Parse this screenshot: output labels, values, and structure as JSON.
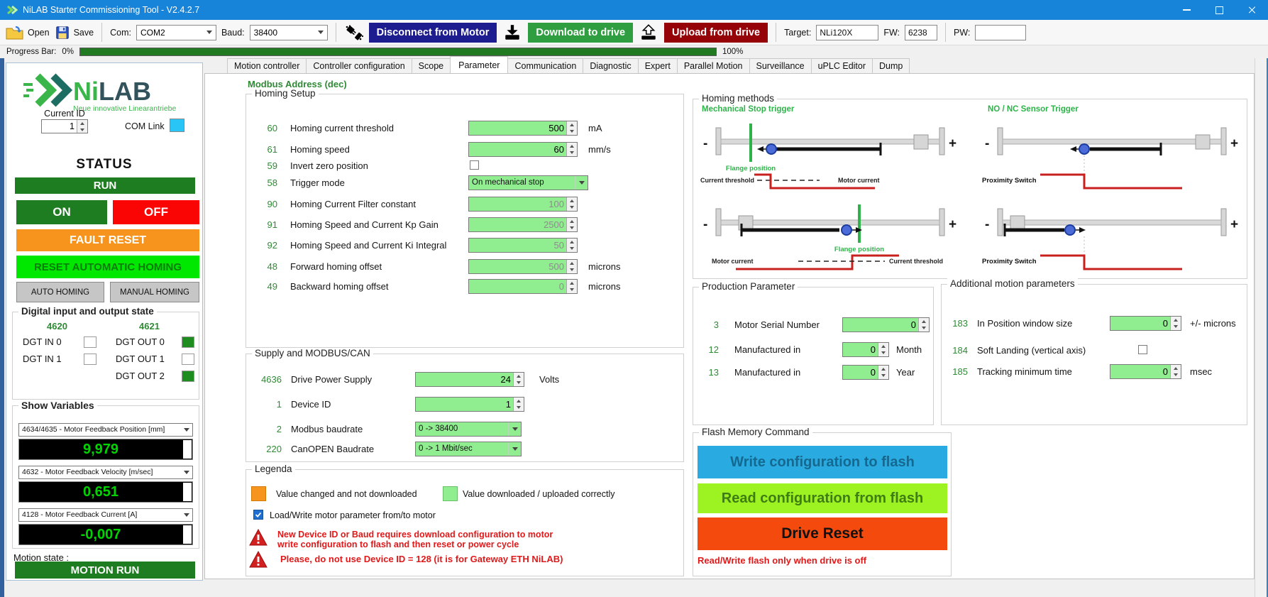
{
  "window": {
    "title": "NiLAB Starter Commissioning Tool - V2.4.2.7"
  },
  "toolbar": {
    "open_label": "Open",
    "save_label": "Save",
    "com_label": "Com:",
    "com_value": "COM2",
    "baud_label": "Baud:",
    "baud_value": "38400",
    "disconnect_label": "Disconnect from Motor",
    "download_label": "Download to drive",
    "upload_label": "Upload from drive",
    "target_label": "Target:",
    "target_value": "NLi120X",
    "fw_label": "FW:",
    "fw_value": "6238",
    "pw_label": "PW:",
    "pw_value": ""
  },
  "progress": {
    "label": "Progress Bar:",
    "start": "0%",
    "end": "100%",
    "fill_percent": 100
  },
  "sidebar": {
    "logo_part1": "Ni",
    "logo_part2": "LAB",
    "logo_tagline": "Neue innovative Linearantriebe",
    "current_id_label": "Current ID",
    "current_id_value": "1",
    "com_link_label": "COM Link",
    "status_title": "STATUS",
    "run_label": "RUN",
    "on_label": "ON",
    "off_label": "OFF",
    "fault_reset_label": "FAULT RESET",
    "reset_automatic_homing_label": "RESET AUTOMATIC HOMING",
    "auto_homing_label": "AUTO HOMING",
    "manual_homing_label": "MANUAL HOMING",
    "dio": {
      "title": "Digital input and output state",
      "col_left": "4620",
      "col_right": "4621",
      "rows": [
        {
          "in_label": "DGT IN 0",
          "in_on": false,
          "out_label": "DGT OUT 0",
          "out_on": true
        },
        {
          "in_label": "DGT IN 1",
          "in_on": false,
          "out_label": "DGT OUT 1",
          "out_on": false
        },
        {
          "in_label": "",
          "in_on": false,
          "out_label": "DGT OUT 2",
          "out_on": true
        }
      ]
    },
    "show_variables": {
      "title": "Show Variables",
      "items": [
        {
          "select_label": "4634/4635 - Motor Feedback Position [mm]",
          "value": "9,979"
        },
        {
          "select_label": "4632 - Motor Feedback Velocity [m/sec]",
          "value": "0,651"
        },
        {
          "select_label": "4128 - Motor Feedback Current [A]",
          "value": "-0,007"
        }
      ]
    },
    "motion_state_label": "Motion state :",
    "motion_state_value": "MOTION RUN"
  },
  "tabs": [
    "Motion controller",
    "Controller configuration",
    "Scope",
    "Parameter",
    "Communication",
    "Diagnostic",
    "Expert",
    "Parallel Motion",
    "Surveillance",
    "uPLC Editor",
    "Dump"
  ],
  "active_tab": "Parameter",
  "parameter_page": {
    "modbus_address_header": "Modbus Address (dec)",
    "homing_setup": {
      "title": "Homing Setup",
      "rows": [
        {
          "addr": "60",
          "label": "Homing current threshold",
          "type": "spin",
          "value": "500",
          "unit": "mA",
          "enabled": true
        },
        {
          "addr": "61",
          "label": "Homing speed",
          "type": "spin",
          "value": "60",
          "unit": "mm/s",
          "enabled": true
        },
        {
          "addr": "59",
          "label": "Invert zero position",
          "type": "checkbox",
          "checked": false
        },
        {
          "addr": "58",
          "label": "Trigger mode",
          "type": "select",
          "value": "On mechanical stop"
        },
        {
          "addr": "90",
          "label": "Homing Current Filter constant",
          "type": "spin",
          "value": "100",
          "enabled": false
        },
        {
          "addr": "91",
          "label": "Homing Speed and Current Kp Gain",
          "type": "spin",
          "value": "2500",
          "enabled": false
        },
        {
          "addr": "92",
          "label": "Homing Speed and Current Ki Integral",
          "type": "spin",
          "value": "50",
          "enabled": false
        },
        {
          "addr": "48",
          "label": "Forward homing offset",
          "type": "spin",
          "value": "500",
          "unit": "microns",
          "enabled": false
        },
        {
          "addr": "49",
          "label": "Backward homing offset",
          "type": "spin",
          "value": "0",
          "unit": "microns",
          "enabled": false
        }
      ]
    },
    "supply": {
      "title": "Supply and MODBUS/CAN",
      "rows": [
        {
          "addr": "4636",
          "label": "Drive Power Supply",
          "type": "spin",
          "value": "24",
          "unit": "Volts",
          "enabled": true
        },
        {
          "addr": "1",
          "label": "Device ID",
          "type": "spin",
          "value": "1",
          "enabled": true
        },
        {
          "addr": "2",
          "label": "Modbus baudrate",
          "type": "select",
          "value": "0 -> 38400"
        },
        {
          "addr": "220",
          "label": "CanOPEN Baudrate",
          "type": "select",
          "value": "0 -> 1 Mbit/sec"
        }
      ]
    },
    "legend": {
      "title": "Legenda",
      "orange_label": "Value changed and not downloaded",
      "green_label": "Value downloaded / uploaded correctly",
      "checkbox_label": "Load/Write motor parameter from/to motor",
      "warning1": "New Device ID or Baud requires download configuration to motor\nwrite configuration to flash and then reset or power cycle",
      "warning2": "Please, do not use Device ID = 128 (it is for Gateway ETH NiLAB)"
    },
    "homing_methods": {
      "title": "Homing methods",
      "left_title": "Mechanical Stop trigger",
      "right_title": "NO / NC Sensor Trigger",
      "flange_label": "Flange position",
      "current_threshold_label": "Current threshold",
      "motor_current_label": "Motor current",
      "proximity_label": "Proximity Switch",
      "plus_label": "+",
      "minus_label": "-"
    },
    "production": {
      "title": "Production Parameter",
      "rows": [
        {
          "addr": "3",
          "label": "Motor Serial Number",
          "type": "spin",
          "value": "0",
          "enabled": true
        },
        {
          "addr": "12",
          "label": "Manufactured in",
          "type": "spin",
          "value": "0",
          "unit": "Month",
          "enabled": true
        },
        {
          "addr": "13",
          "label": "Manufactured in",
          "type": "spin",
          "value": "0",
          "unit": "Year",
          "enabled": true
        }
      ]
    },
    "additional": {
      "title": "Additional motion parameters",
      "rows": [
        {
          "addr": "183",
          "label": "In Position window size",
          "type": "spin",
          "value": "0",
          "unit": "+/- microns",
          "enabled": true
        },
        {
          "addr": "184",
          "label": "Soft Landing (vertical axis)",
          "type": "checkbox",
          "checked": false
        },
        {
          "addr": "185",
          "label": "Tracking minimum time",
          "type": "spin",
          "value": "0",
          "unit": "msec",
          "enabled": true
        }
      ]
    },
    "flash": {
      "title": "Flash Memory Command",
      "write_label": "Write configuration to flash",
      "read_label": "Read configuration from flash",
      "reset_label": "Drive Reset",
      "note": "Read/Write flash only when drive is off"
    }
  },
  "colors": {
    "titlebar_blue": "#1884d9",
    "run_green": "#1e7d21",
    "off_red": "#fb0404",
    "fault_orange": "#f7941e",
    "reset_homing_green": "#00e800",
    "field_green": "#90ee90",
    "lcd_green": "#00d400",
    "disconnect_navy": "#1d1d8f",
    "download_green": "#2f9e41",
    "upload_darkred": "#950308",
    "write_flash_cyan": "#29abe2",
    "read_flash_green": "#9df222",
    "drive_reset_orange": "#f44a0e",
    "warning_red": "#e01a1a",
    "com_link_cyan": "#29c5f6",
    "diagram_green": "#2eb34a",
    "signal_red": "#c8201e"
  }
}
